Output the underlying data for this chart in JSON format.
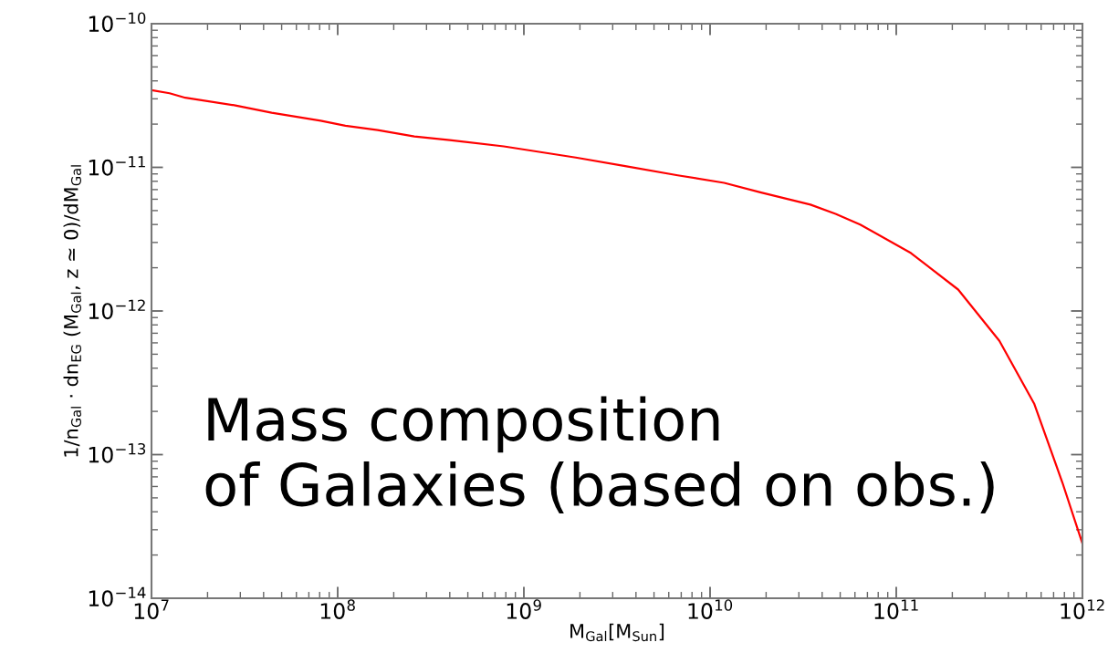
{
  "chart_data": {
    "type": "line",
    "xlabel": "M$_{Gal}$[M$_{Sun}$]",
    "ylabel": "1/n$_{Gal}$ · dn$_{EG}$ (M$_{Gal}$, z ≃ 0)/dM$_{Gal}$",
    "annotations": [
      "Mass composition\nof Galaxies (based on obs.)"
    ],
    "log": "xy",
    "grid": false,
    "legend": false,
    "marker": "none",
    "line_style": "solid",
    "xlim": [
      10000000.0,
      1000000000000.0
    ],
    "ylim": [
      1e-14,
      1e-10
    ],
    "xticks": [
      {
        "value": 10000000.0,
        "label": "10$^{7}$"
      },
      {
        "value": 100000000.0,
        "label": "10$^{8}$"
      },
      {
        "value": 1000000000.0,
        "label": "10$^{9}$"
      },
      {
        "value": 10000000000.0,
        "label": "10$^{10}$"
      },
      {
        "value": 100000000000.0,
        "label": "10$^{11}$"
      },
      {
        "value": 1000000000000.0,
        "label": "10$^{12}$"
      }
    ],
    "yticks": [
      {
        "value": 1e-14,
        "label": "10$^{−14}$"
      },
      {
        "value": 1e-13,
        "label": "10$^{−13}$"
      },
      {
        "value": 1e-12,
        "label": "10$^{−12}$"
      },
      {
        "value": 1e-11,
        "label": "10$^{−11}$"
      },
      {
        "value": 1e-10,
        "label": "10$^{−10}$"
      }
    ],
    "series": [
      {
        "color": "#ff0000",
        "x": [
          10000000.0,
          12500000.0,
          15200000.0,
          28200000.0,
          44200000.0,
          81000000.0,
          110000000.0,
          164000000.0,
          258000000.0,
          400000000.0,
          780000000.0,
          1370000000.0,
          1900000000.0,
          3500000000.0,
          6700000000.0,
          11900000000.0,
          18600000000.0,
          34600000000.0,
          47200000000.0,
          64000000000.0,
          120000000000.0,
          215000000000.0,
          358000000000.0,
          550000000000.0,
          780000000000.0,
          1000000000000.0
        ],
        "values": [
          3.45e-11,
          3.28e-11,
          3.05e-11,
          2.7e-11,
          2.4e-11,
          2.11e-11,
          1.95e-11,
          1.82e-11,
          1.64e-11,
          1.55e-11,
          1.4e-11,
          1.25e-11,
          1.17e-11,
          1.02e-11,
          8.8e-12,
          7.8e-12,
          6.7e-12,
          5.5e-12,
          4.75e-12,
          4e-12,
          2.53e-12,
          1.41e-12,
          6.2e-13,
          2.27e-13,
          6.4e-14,
          2.4e-14
        ]
      }
    ]
  }
}
